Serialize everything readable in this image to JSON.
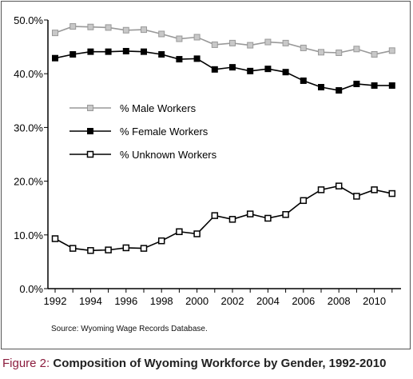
{
  "chart_data": {
    "type": "line",
    "title": "",
    "xlabel": "",
    "ylabel": "",
    "x": [
      1992,
      1993,
      1994,
      1995,
      1996,
      1997,
      1998,
      1999,
      2000,
      2001,
      2002,
      2003,
      2004,
      2005,
      2006,
      2007,
      2008,
      2009,
      2010,
      2011
    ],
    "x_tick_labels": [
      "1992",
      "1994",
      "1996",
      "1998",
      "2000",
      "2002",
      "2004",
      "2006",
      "2008",
      "2010"
    ],
    "y_tick_labels": [
      "0.0%",
      "10.0%",
      "20.0%",
      "30.0%",
      "40.0%",
      "50.0%"
    ],
    "ylim": [
      0,
      50
    ],
    "y_unit": "%",
    "grid": false,
    "legend_position": "left-center",
    "series": [
      {
        "name": "% Male Workers",
        "color": "#999999",
        "marker": "square-filled-gray",
        "values": [
          47.6,
          48.8,
          48.7,
          48.6,
          48.1,
          48.2,
          47.4,
          46.5,
          46.8,
          45.4,
          45.7,
          45.3,
          45.9,
          45.7,
          44.8,
          44.0,
          43.9,
          44.6,
          43.6,
          44.3
        ]
      },
      {
        "name": "% Female Workers",
        "color": "#000000",
        "marker": "square-filled-black",
        "values": [
          42.9,
          43.6,
          44.1,
          44.1,
          44.2,
          44.1,
          43.6,
          42.7,
          42.8,
          40.8,
          41.2,
          40.5,
          40.9,
          40.3,
          38.7,
          37.5,
          36.9,
          38.1,
          37.8,
          37.8
        ]
      },
      {
        "name": "% Unknown Workers",
        "color": "#000000",
        "marker": "square-open",
        "values": [
          9.3,
          7.5,
          7.1,
          7.2,
          7.6,
          7.5,
          8.9,
          10.6,
          10.2,
          13.6,
          12.9,
          13.9,
          13.1,
          13.8,
          16.4,
          18.4,
          19.1,
          17.2,
          18.4,
          17.7
        ]
      }
    ]
  },
  "source_note": "Source: Wyoming Wage Records Database.",
  "caption": {
    "label": "Figure 2:",
    "text": "Composition of Wyoming Workforce by Gender, 1992-2010"
  }
}
